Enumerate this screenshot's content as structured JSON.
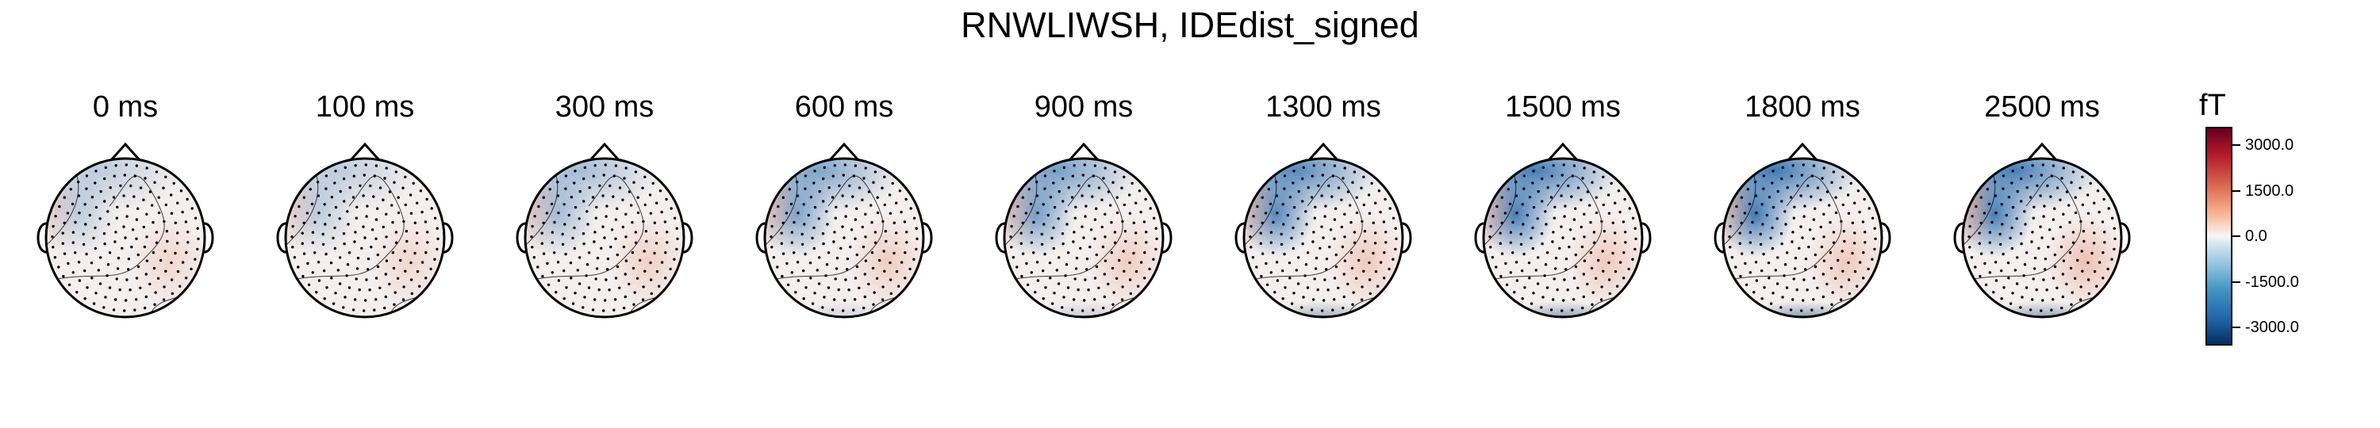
{
  "title": "RNWLIWSH, IDEdist_signed",
  "chart_data": {
    "type": "heatmap",
    "title": "RNWLIWSH, IDEdist_signed",
    "panels": [
      {
        "label": "0 ms",
        "time_ms": 0,
        "peak_blue": 0.15,
        "peak_red": 0.15
      },
      {
        "label": "100 ms",
        "time_ms": 100,
        "peak_blue": 0.15,
        "peak_red": 0.15
      },
      {
        "label": "300 ms",
        "time_ms": 300,
        "peak_blue": 0.3,
        "peak_red": 0.25
      },
      {
        "label": "600 ms",
        "time_ms": 600,
        "peak_blue": 0.55,
        "peak_red": 0.3
      },
      {
        "label": "900 ms",
        "time_ms": 900,
        "peak_blue": 0.6,
        "peak_red": 0.3
      },
      {
        "label": "1300 ms",
        "time_ms": 1300,
        "peak_blue": 0.8,
        "peak_red": 0.35
      },
      {
        "label": "1500 ms",
        "time_ms": 1500,
        "peak_blue": 0.9,
        "peak_red": 0.35
      },
      {
        "label": "1800 ms",
        "time_ms": 1800,
        "peak_blue": 0.95,
        "peak_red": 0.35
      },
      {
        "label": "2500 ms",
        "time_ms": 2500,
        "peak_blue": 0.9,
        "peak_red": 0.5
      }
    ],
    "colorbar": {
      "unit": "fT",
      "range": [
        -3600,
        3600
      ],
      "ticks": [
        3000.0,
        1500.0,
        0.0,
        -1500.0,
        -3000.0
      ],
      "tick_labels": [
        "3000.0",
        "1500.0",
        "0.0",
        "-1500.0",
        "-3000.0"
      ],
      "colormap": "RdBu_r"
    }
  }
}
